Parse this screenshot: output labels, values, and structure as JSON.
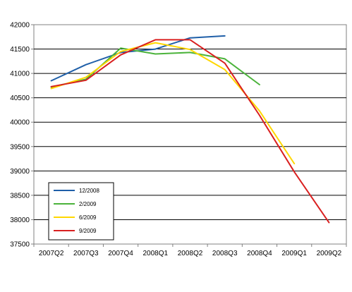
{
  "chart_data": {
    "type": "line",
    "categories": [
      "2007Q2",
      "2007Q3",
      "2007Q4",
      "2008Q1",
      "2008Q2",
      "2008Q3",
      "2008Q4",
      "2009Q1",
      "2009Q2"
    ],
    "ylim": [
      37500,
      42000
    ],
    "yticks": [
      37500,
      38000,
      38500,
      39000,
      39500,
      40000,
      40500,
      41000,
      41500,
      42000
    ],
    "grid": true,
    "legend_position": "bottom-left",
    "series": [
      {
        "name": "12/2008",
        "color": "#1f5fa8",
        "values": [
          40850,
          41180,
          41430,
          41500,
          41730,
          41770,
          null,
          null,
          null
        ]
      },
      {
        "name": "2/2009",
        "color": "#4bb33b",
        "values": [
          40720,
          40880,
          41520,
          41400,
          41430,
          41300,
          40770,
          null,
          null
        ]
      },
      {
        "name": "6/2009",
        "color": "#ffd700",
        "values": [
          40690,
          40920,
          41450,
          41630,
          41490,
          41080,
          40230,
          39150,
          null
        ]
      },
      {
        "name": "9/2009",
        "color": "#d92020",
        "values": [
          40730,
          40860,
          41380,
          41690,
          41690,
          41210,
          40140,
          38980,
          37940
        ]
      }
    ]
  }
}
